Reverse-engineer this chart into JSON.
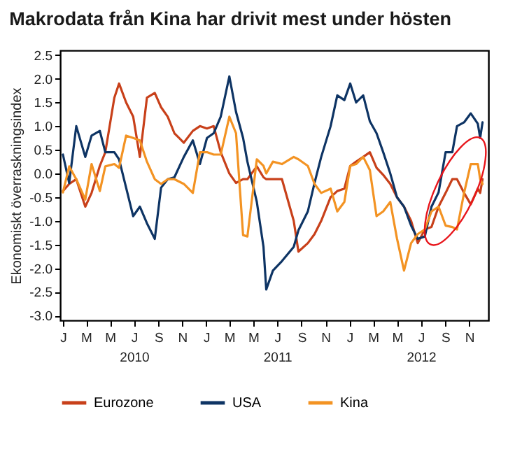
{
  "chart_data": {
    "type": "line",
    "title": "Makrodata från Kina har drivit mest under hösten",
    "ylabel": "Ekonomiskt överraskningsindex",
    "x": [
      "2010-01-01",
      "2010-01-17",
      "2010-02-04",
      "2010-02-27",
      "2010-03-15",
      "2010-04-05",
      "2010-04-19",
      "2010-05-12",
      "2010-05-24",
      "2010-06-11",
      "2010-06-29",
      "2010-07-16",
      "2010-08-03",
      "2010-08-23",
      "2010-09-08",
      "2010-09-25",
      "2010-10-12",
      "2010-11-05",
      "2010-11-28",
      "2010-12-16",
      "2011-01-03",
      "2011-01-20",
      "2011-02-07",
      "2011-03-01",
      "2011-03-18",
      "2011-04-05",
      "2011-04-16",
      "2011-05-10",
      "2011-05-27",
      "2011-06-03",
      "2011-06-20",
      "2011-07-13",
      "2011-08-12",
      "2011-08-24",
      "2011-09-17",
      "2011-10-04",
      "2011-10-21",
      "2011-11-14",
      "2011-12-01",
      "2011-12-19",
      "2012-01-03",
      "2012-01-18",
      "2012-02-05",
      "2012-02-22",
      "2012-03-10",
      "2012-03-27",
      "2012-04-14",
      "2012-05-01",
      "2012-05-19",
      "2012-06-06",
      "2012-06-23",
      "2012-07-11",
      "2012-07-28",
      "2012-08-15",
      "2012-09-02",
      "2012-09-19",
      "2012-10-01",
      "2012-10-19",
      "2012-11-05",
      "2012-11-23",
      "2012-11-29",
      "2012-12-05"
    ],
    "series": [
      {
        "name": "Eurozone",
        "color": "#c8401a",
        "values": [
          -0.37,
          -0.22,
          -0.12,
          -0.7,
          -0.41,
          0.16,
          0.45,
          1.6,
          1.9,
          1.5,
          1.2,
          0.35,
          1.6,
          1.7,
          1.4,
          1.2,
          0.85,
          0.65,
          0.9,
          1.0,
          0.95,
          1.0,
          0.45,
          0,
          -0.2,
          -0.12,
          -0.12,
          0.15,
          -0.08,
          -0.12,
          -0.12,
          -0.12,
          -1.0,
          -1.65,
          -1.47,
          -1.28,
          -1.0,
          -0.5,
          -0.37,
          -0.32,
          0.16,
          0.25,
          0.35,
          0.45,
          0.12,
          -0.03,
          -0.22,
          -0.5,
          -0.7,
          -1.0,
          -1.47,
          -1.18,
          -1.13,
          -0.7,
          -0.41,
          -0.12,
          -0.12,
          -0.41,
          -0.65,
          -0.32,
          -0.41,
          -0.12
        ]
      },
      {
        "name": "USA",
        "color": "#0e3464",
        "values": [
          0.4,
          -0.2,
          1.0,
          0.35,
          0.8,
          0.9,
          0.45,
          0.45,
          0.3,
          -0.3,
          -0.9,
          -0.7,
          -1.05,
          -1.38,
          -0.3,
          -0.12,
          -0.08,
          0.35,
          0.7,
          0.2,
          0.75,
          0.85,
          1.2,
          2.05,
          1.3,
          0.75,
          0.25,
          -0.6,
          -1.55,
          -2.45,
          -2.05,
          -1.85,
          -1.55,
          -1.2,
          -0.8,
          -0.2,
          0.35,
          1.0,
          1.65,
          1.55,
          1.9,
          1.5,
          1.65,
          1.1,
          0.85,
          0.45,
          0,
          -0.5,
          -0.7,
          -1.1,
          -1.38,
          -1.33,
          -0.7,
          -0.4,
          0.45,
          0.45,
          1.0,
          1.08,
          1.27,
          1.05,
          0.75,
          1.08
        ]
      },
      {
        "name": "Kina",
        "color": "#f39323",
        "values": [
          -0.4,
          0.15,
          -0.12,
          -0.55,
          0.2,
          -0.37,
          0.15,
          0.2,
          0.12,
          0.8,
          0.75,
          0.7,
          0.25,
          -0.12,
          -0.22,
          -0.12,
          -0.12,
          -0.22,
          -0.41,
          0.45,
          0.45,
          0.4,
          0.4,
          1.2,
          0.85,
          -1.3,
          -1.33,
          0.3,
          0.16,
          0,
          0.25,
          0.2,
          0.35,
          0.3,
          0.16,
          -0.22,
          -0.41,
          -0.32,
          -0.8,
          -0.6,
          0.16,
          0.2,
          0.35,
          0.07,
          -0.9,
          -0.8,
          -0.6,
          -1.37,
          -2.05,
          -1.47,
          -1.28,
          -1.18,
          -0.8,
          -0.7,
          -1.1,
          -1.13,
          -1.18,
          -0.41,
          0.2,
          0.2,
          -0.12,
          -0.22
        ]
      }
    ],
    "xlim": [
      "2009-12-25",
      "2012-12-20"
    ],
    "xticks": [
      {
        "value": "2010-01-01",
        "label": "J"
      },
      {
        "value": "2010-03-01",
        "label": "M"
      },
      {
        "value": "2010-05-01",
        "label": "M"
      },
      {
        "value": "2010-07-01",
        "label": "J\n2010"
      },
      {
        "value": "2010-09-01",
        "label": "S"
      },
      {
        "value": "2010-11-01",
        "label": "N"
      },
      {
        "value": "2011-01-01",
        "label": "J"
      },
      {
        "value": "2011-03-01",
        "label": "M"
      },
      {
        "value": "2011-05-01",
        "label": "M"
      },
      {
        "value": "2011-07-01",
        "label": "J\n2011"
      },
      {
        "value": "2011-09-01",
        "label": "S"
      },
      {
        "value": "2011-11-01",
        "label": "N"
      },
      {
        "value": "2012-01-01",
        "label": "J"
      },
      {
        "value": "2012-03-01",
        "label": "M"
      },
      {
        "value": "2012-05-01",
        "label": "M"
      },
      {
        "value": "2012-07-01",
        "label": "J\n2012"
      },
      {
        "value": "2012-09-01",
        "label": "S"
      },
      {
        "value": "2012-11-01",
        "label": "N"
      }
    ],
    "ylim": [
      -3.1,
      2.6
    ],
    "yticks": [
      {
        "value": -3,
        "label": "-3.0"
      },
      -2.5,
      {
        "value": -2,
        "label": "-2.0"
      },
      -1.5,
      {
        "value": -1,
        "label": "-1.0"
      },
      -0.5,
      {
        "value": 0,
        "label": "0.0"
      },
      0.5,
      {
        "value": 1,
        "label": "1.0"
      },
      1.5,
      {
        "value": 2,
        "label": "2.0"
      },
      2.5
    ],
    "grid": false,
    "legend": "bottom",
    "line_style": "solid"
  }
}
